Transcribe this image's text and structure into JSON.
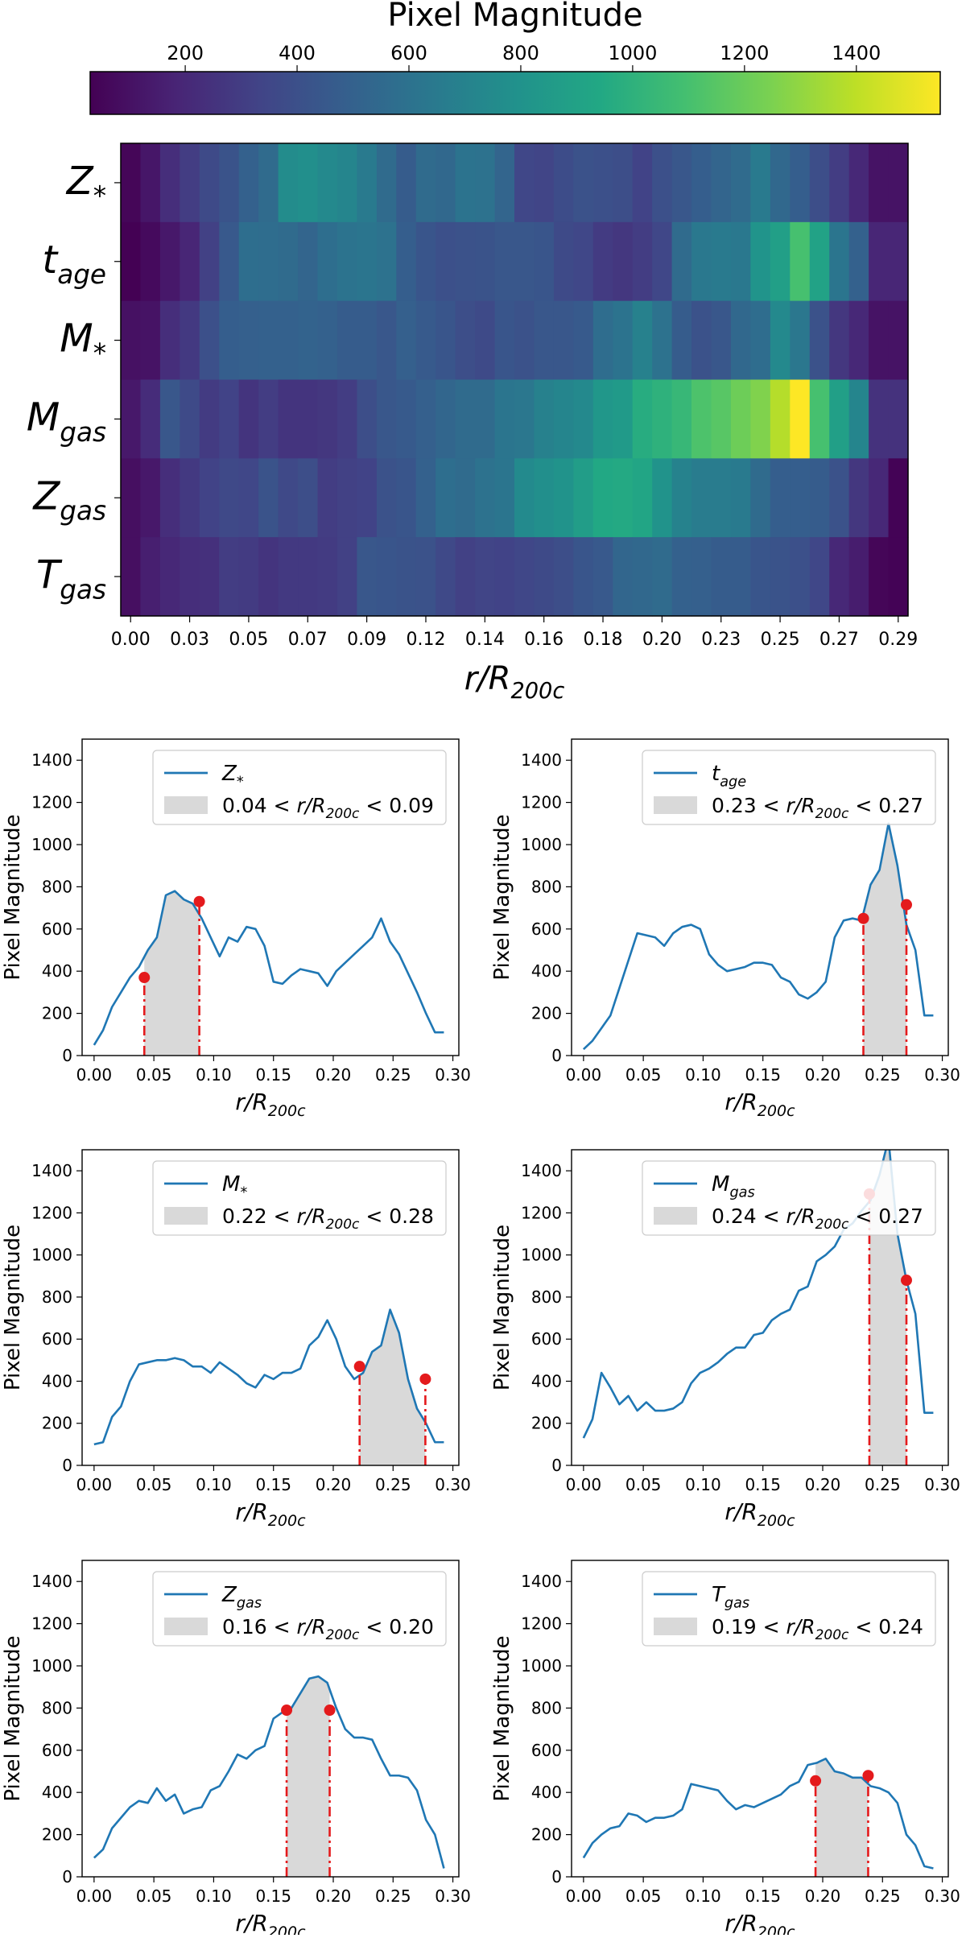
{
  "colorbar": {
    "label": "Pixel Magnitude",
    "range": [
      30,
      1550
    ],
    "ticks": [
      200,
      400,
      600,
      800,
      1000,
      1200,
      1400
    ],
    "stops": [
      "#440154",
      "#482475",
      "#414487",
      "#355f8d",
      "#2a788e",
      "#21918c",
      "#22a884",
      "#44bf70",
      "#7ad151",
      "#bddf26",
      "#fde725"
    ]
  },
  "heatmap": {
    "xlabel": "r/R200c",
    "xticks": [
      "0.00",
      "0.03",
      "0.05",
      "0.07",
      "0.09",
      "0.12",
      "0.14",
      "0.16",
      "0.18",
      "0.20",
      "0.23",
      "0.25",
      "0.27",
      "0.29"
    ],
    "rows": [
      {
        "label": "Z",
        "sub": "*"
      },
      {
        "label": "t",
        "sub": "age"
      },
      {
        "label": "M",
        "sub": "*"
      },
      {
        "label": "M",
        "sub": "gas"
      },
      {
        "label": "Z",
        "sub": "gas"
      },
      {
        "label": "T",
        "sub": "gas"
      }
    ]
  },
  "panels_axes": {
    "xlabel": "r/R200c",
    "ylabel": "Pixel Magnitude",
    "xticks": [
      "0.00",
      "0.05",
      "0.10",
      "0.15",
      "0.20",
      "0.25",
      "0.30"
    ],
    "yticks": [
      "0",
      "200",
      "400",
      "600",
      "800",
      "1000",
      "1200",
      "1400"
    ]
  },
  "chart_data": [
    {
      "type": "heatmap",
      "title": "",
      "xlabel": "r/R200c",
      "ylabel": "",
      "x": [
        0.0,
        0.0075,
        0.015,
        0.0225,
        0.03,
        0.0375,
        0.045,
        0.0525,
        0.06,
        0.0675,
        0.075,
        0.0825,
        0.09,
        0.0975,
        0.105,
        0.1125,
        0.12,
        0.1275,
        0.135,
        0.1425,
        0.15,
        0.1575,
        0.165,
        0.1725,
        0.18,
        0.1875,
        0.195,
        0.2025,
        0.21,
        0.2175,
        0.225,
        0.2325,
        0.24,
        0.2475,
        0.255,
        0.2625,
        0.27,
        0.2775,
        0.285,
        0.2925
      ],
      "xlim": [
        0.0,
        0.295
      ],
      "color_range": [
        30,
        1550
      ],
      "series": [
        {
          "name": "Z*",
          "values": [
            50,
            120,
            230,
            300,
            370,
            420,
            500,
            560,
            760,
            780,
            740,
            720,
            650,
            560,
            470,
            560,
            540,
            610,
            600,
            520,
            350,
            340,
            380,
            410,
            400,
            390,
            330,
            400,
            440,
            480,
            520,
            560,
            650,
            540,
            480,
            390,
            300,
            200,
            110,
            110
          ]
        },
        {
          "name": "tage",
          "values": [
            30,
            70,
            130,
            190,
            320,
            450,
            580,
            570,
            560,
            520,
            580,
            610,
            620,
            600,
            480,
            430,
            400,
            410,
            420,
            440,
            440,
            430,
            370,
            350,
            290,
            270,
            300,
            350,
            560,
            640,
            650,
            640,
            810,
            880,
            1100,
            900,
            620,
            500,
            190,
            190
          ]
        },
        {
          "name": "M*",
          "values": [
            100,
            110,
            230,
            280,
            400,
            480,
            490,
            500,
            500,
            510,
            500,
            470,
            470,
            440,
            490,
            460,
            430,
            390,
            370,
            430,
            410,
            440,
            440,
            460,
            570,
            610,
            690,
            600,
            470,
            410,
            440,
            540,
            570,
            740,
            630,
            410,
            270,
            200,
            110,
            110
          ]
        },
        {
          "name": "Mgas",
          "values": [
            130,
            220,
            440,
            370,
            290,
            330,
            260,
            300,
            260,
            260,
            270,
            300,
            390,
            440,
            460,
            490,
            530,
            560,
            560,
            620,
            630,
            690,
            720,
            740,
            830,
            850,
            970,
            1000,
            1040,
            1120,
            1150,
            1210,
            1260,
            1380,
            1550,
            1100,
            880,
            720,
            250,
            250
          ]
        },
        {
          "name": "Zgas",
          "values": [
            90,
            130,
            230,
            280,
            330,
            360,
            350,
            420,
            360,
            390,
            300,
            320,
            330,
            410,
            430,
            500,
            580,
            560,
            600,
            620,
            750,
            780,
            800,
            870,
            940,
            950,
            920,
            800,
            700,
            660,
            660,
            650,
            560,
            480,
            480,
            470,
            410,
            270,
            200,
            40
          ]
        },
        {
          "name": "Tgas",
          "values": [
            90,
            160,
            200,
            230,
            240,
            300,
            290,
            260,
            280,
            280,
            290,
            320,
            440,
            430,
            420,
            410,
            360,
            320,
            340,
            330,
            350,
            370,
            390,
            430,
            450,
            530,
            540,
            560,
            500,
            490,
            470,
            470,
            430,
            420,
            400,
            350,
            200,
            150,
            50,
            40
          ]
        }
      ]
    },
    {
      "type": "line",
      "xlabel": "r/R200c",
      "ylabel": "Pixel Magnitude",
      "xlim": [
        -0.01,
        0.305
      ],
      "ylim": [
        0,
        1500
      ],
      "x_source": "shared-radius",
      "panels": [
        {
          "series": "Z*",
          "legend": {
            "label": "Z",
            "sub": "*",
            "range_text": "0.04 < r/R200c < 0.09"
          },
          "shaded_range": [
            0.042,
            0.088
          ],
          "markers": [
            [
              0.042,
              370
            ],
            [
              0.088,
              730
            ]
          ]
        },
        {
          "series": "tage",
          "legend": {
            "label": "t",
            "sub": "age",
            "range_text": "0.23 < r/R200c < 0.27"
          },
          "shaded_range": [
            0.234,
            0.27
          ],
          "markers": [
            [
              0.234,
              650
            ],
            [
              0.27,
              715
            ]
          ]
        },
        {
          "series": "M*",
          "legend": {
            "label": "M",
            "sub": "*",
            "range_text": "0.22 < r/R200c < 0.28"
          },
          "shaded_range": [
            0.222,
            0.277
          ],
          "markers": [
            [
              0.222,
              470
            ],
            [
              0.277,
              410
            ]
          ]
        },
        {
          "series": "Mgas",
          "legend": {
            "label": "M",
            "sub": "gas",
            "range_text": "0.24 < r/R200c < 0.27"
          },
          "shaded_range": [
            0.239,
            0.27
          ],
          "markers": [
            [
              0.239,
              1290
            ],
            [
              0.27,
              880
            ]
          ]
        },
        {
          "series": "Zgas",
          "legend": {
            "label": "Z",
            "sub": "gas",
            "range_text": "0.16 < r/R200c < 0.20"
          },
          "shaded_range": [
            0.161,
            0.197
          ],
          "markers": [
            [
              0.161,
              790
            ],
            [
              0.197,
              790
            ]
          ]
        },
        {
          "series": "Tgas",
          "legend": {
            "label": "T",
            "sub": "gas",
            "range_text": "0.19 < r/R200c < 0.24"
          },
          "shaded_range": [
            0.194,
            0.238
          ],
          "markers": [
            [
              0.194,
              455
            ],
            [
              0.238,
              480
            ]
          ]
        }
      ],
      "line_color": "#1f77b4",
      "marker_color": "#e41a1c",
      "band_color": "#d9d9d9"
    }
  ]
}
